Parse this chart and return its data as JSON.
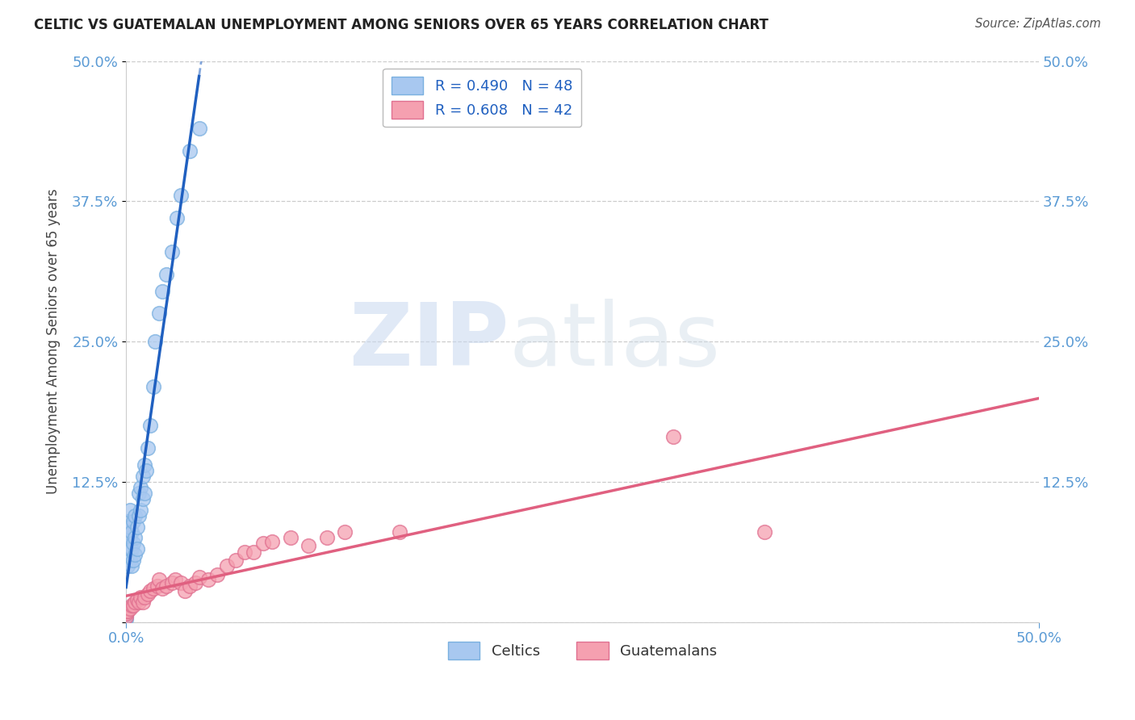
{
  "title": "CELTIC VS GUATEMALAN UNEMPLOYMENT AMONG SENIORS OVER 65 YEARS CORRELATION CHART",
  "source": "Source: ZipAtlas.com",
  "ylabel": "Unemployment Among Seniors over 65 years",
  "xlim": [
    0,
    0.5
  ],
  "ylim": [
    0,
    0.5
  ],
  "yticks": [
    0,
    0.125,
    0.25,
    0.375,
    0.5
  ],
  "ytick_labels": [
    "",
    "12.5%",
    "25.0%",
    "37.5%",
    "50.0%"
  ],
  "watermark_zip": "ZIP",
  "watermark_atlas": "atlas",
  "celtic_color": "#a8c8f0",
  "celtic_edge_color": "#7ab0e0",
  "guatemalan_color": "#f5a0b0",
  "guatemalan_edge_color": "#e07090",
  "celtic_line_color": "#2060c0",
  "guatemalan_line_color": "#e06080",
  "celtic_R": 0.49,
  "celtic_N": 48,
  "guatemalan_R": 0.608,
  "guatemalan_N": 42,
  "celtic_x": [
    0.0,
    0.0,
    0.0,
    0.0,
    0.0,
    0.0,
    0.001,
    0.001,
    0.001,
    0.001,
    0.001,
    0.002,
    0.002,
    0.002,
    0.002,
    0.002,
    0.003,
    0.003,
    0.003,
    0.004,
    0.004,
    0.004,
    0.005,
    0.005,
    0.005,
    0.006,
    0.006,
    0.007,
    0.007,
    0.008,
    0.008,
    0.009,
    0.009,
    0.01,
    0.01,
    0.011,
    0.012,
    0.013,
    0.015,
    0.016,
    0.018,
    0.02,
    0.022,
    0.025,
    0.028,
    0.03,
    0.035,
    0.04
  ],
  "celtic_y": [
    0.003,
    0.005,
    0.006,
    0.008,
    0.01,
    0.012,
    0.05,
    0.06,
    0.07,
    0.08,
    0.09,
    0.055,
    0.065,
    0.075,
    0.085,
    0.1,
    0.05,
    0.065,
    0.08,
    0.055,
    0.07,
    0.09,
    0.06,
    0.075,
    0.095,
    0.065,
    0.085,
    0.095,
    0.115,
    0.1,
    0.12,
    0.11,
    0.13,
    0.115,
    0.14,
    0.135,
    0.155,
    0.175,
    0.21,
    0.25,
    0.275,
    0.295,
    0.31,
    0.33,
    0.36,
    0.38,
    0.42,
    0.44
  ],
  "guatemalan_x": [
    0.0,
    0.0,
    0.0,
    0.001,
    0.002,
    0.003,
    0.004,
    0.005,
    0.006,
    0.007,
    0.008,
    0.009,
    0.01,
    0.012,
    0.013,
    0.015,
    0.017,
    0.018,
    0.02,
    0.022,
    0.025,
    0.027,
    0.03,
    0.032,
    0.035,
    0.038,
    0.04,
    0.045,
    0.05,
    0.055,
    0.06,
    0.065,
    0.07,
    0.075,
    0.08,
    0.09,
    0.1,
    0.11,
    0.12,
    0.15,
    0.3,
    0.35
  ],
  "guatemalan_y": [
    0.005,
    0.008,
    0.01,
    0.01,
    0.012,
    0.015,
    0.015,
    0.018,
    0.02,
    0.018,
    0.022,
    0.018,
    0.022,
    0.025,
    0.028,
    0.03,
    0.032,
    0.038,
    0.03,
    0.032,
    0.035,
    0.038,
    0.035,
    0.028,
    0.032,
    0.035,
    0.04,
    0.038,
    0.042,
    0.05,
    0.055,
    0.062,
    0.062,
    0.07,
    0.072,
    0.075,
    0.068,
    0.075,
    0.08,
    0.08,
    0.165,
    0.08
  ],
  "background_color": "#ffffff",
  "grid_color": "#cccccc",
  "tick_color": "#5b9bd5",
  "title_color": "#222222"
}
